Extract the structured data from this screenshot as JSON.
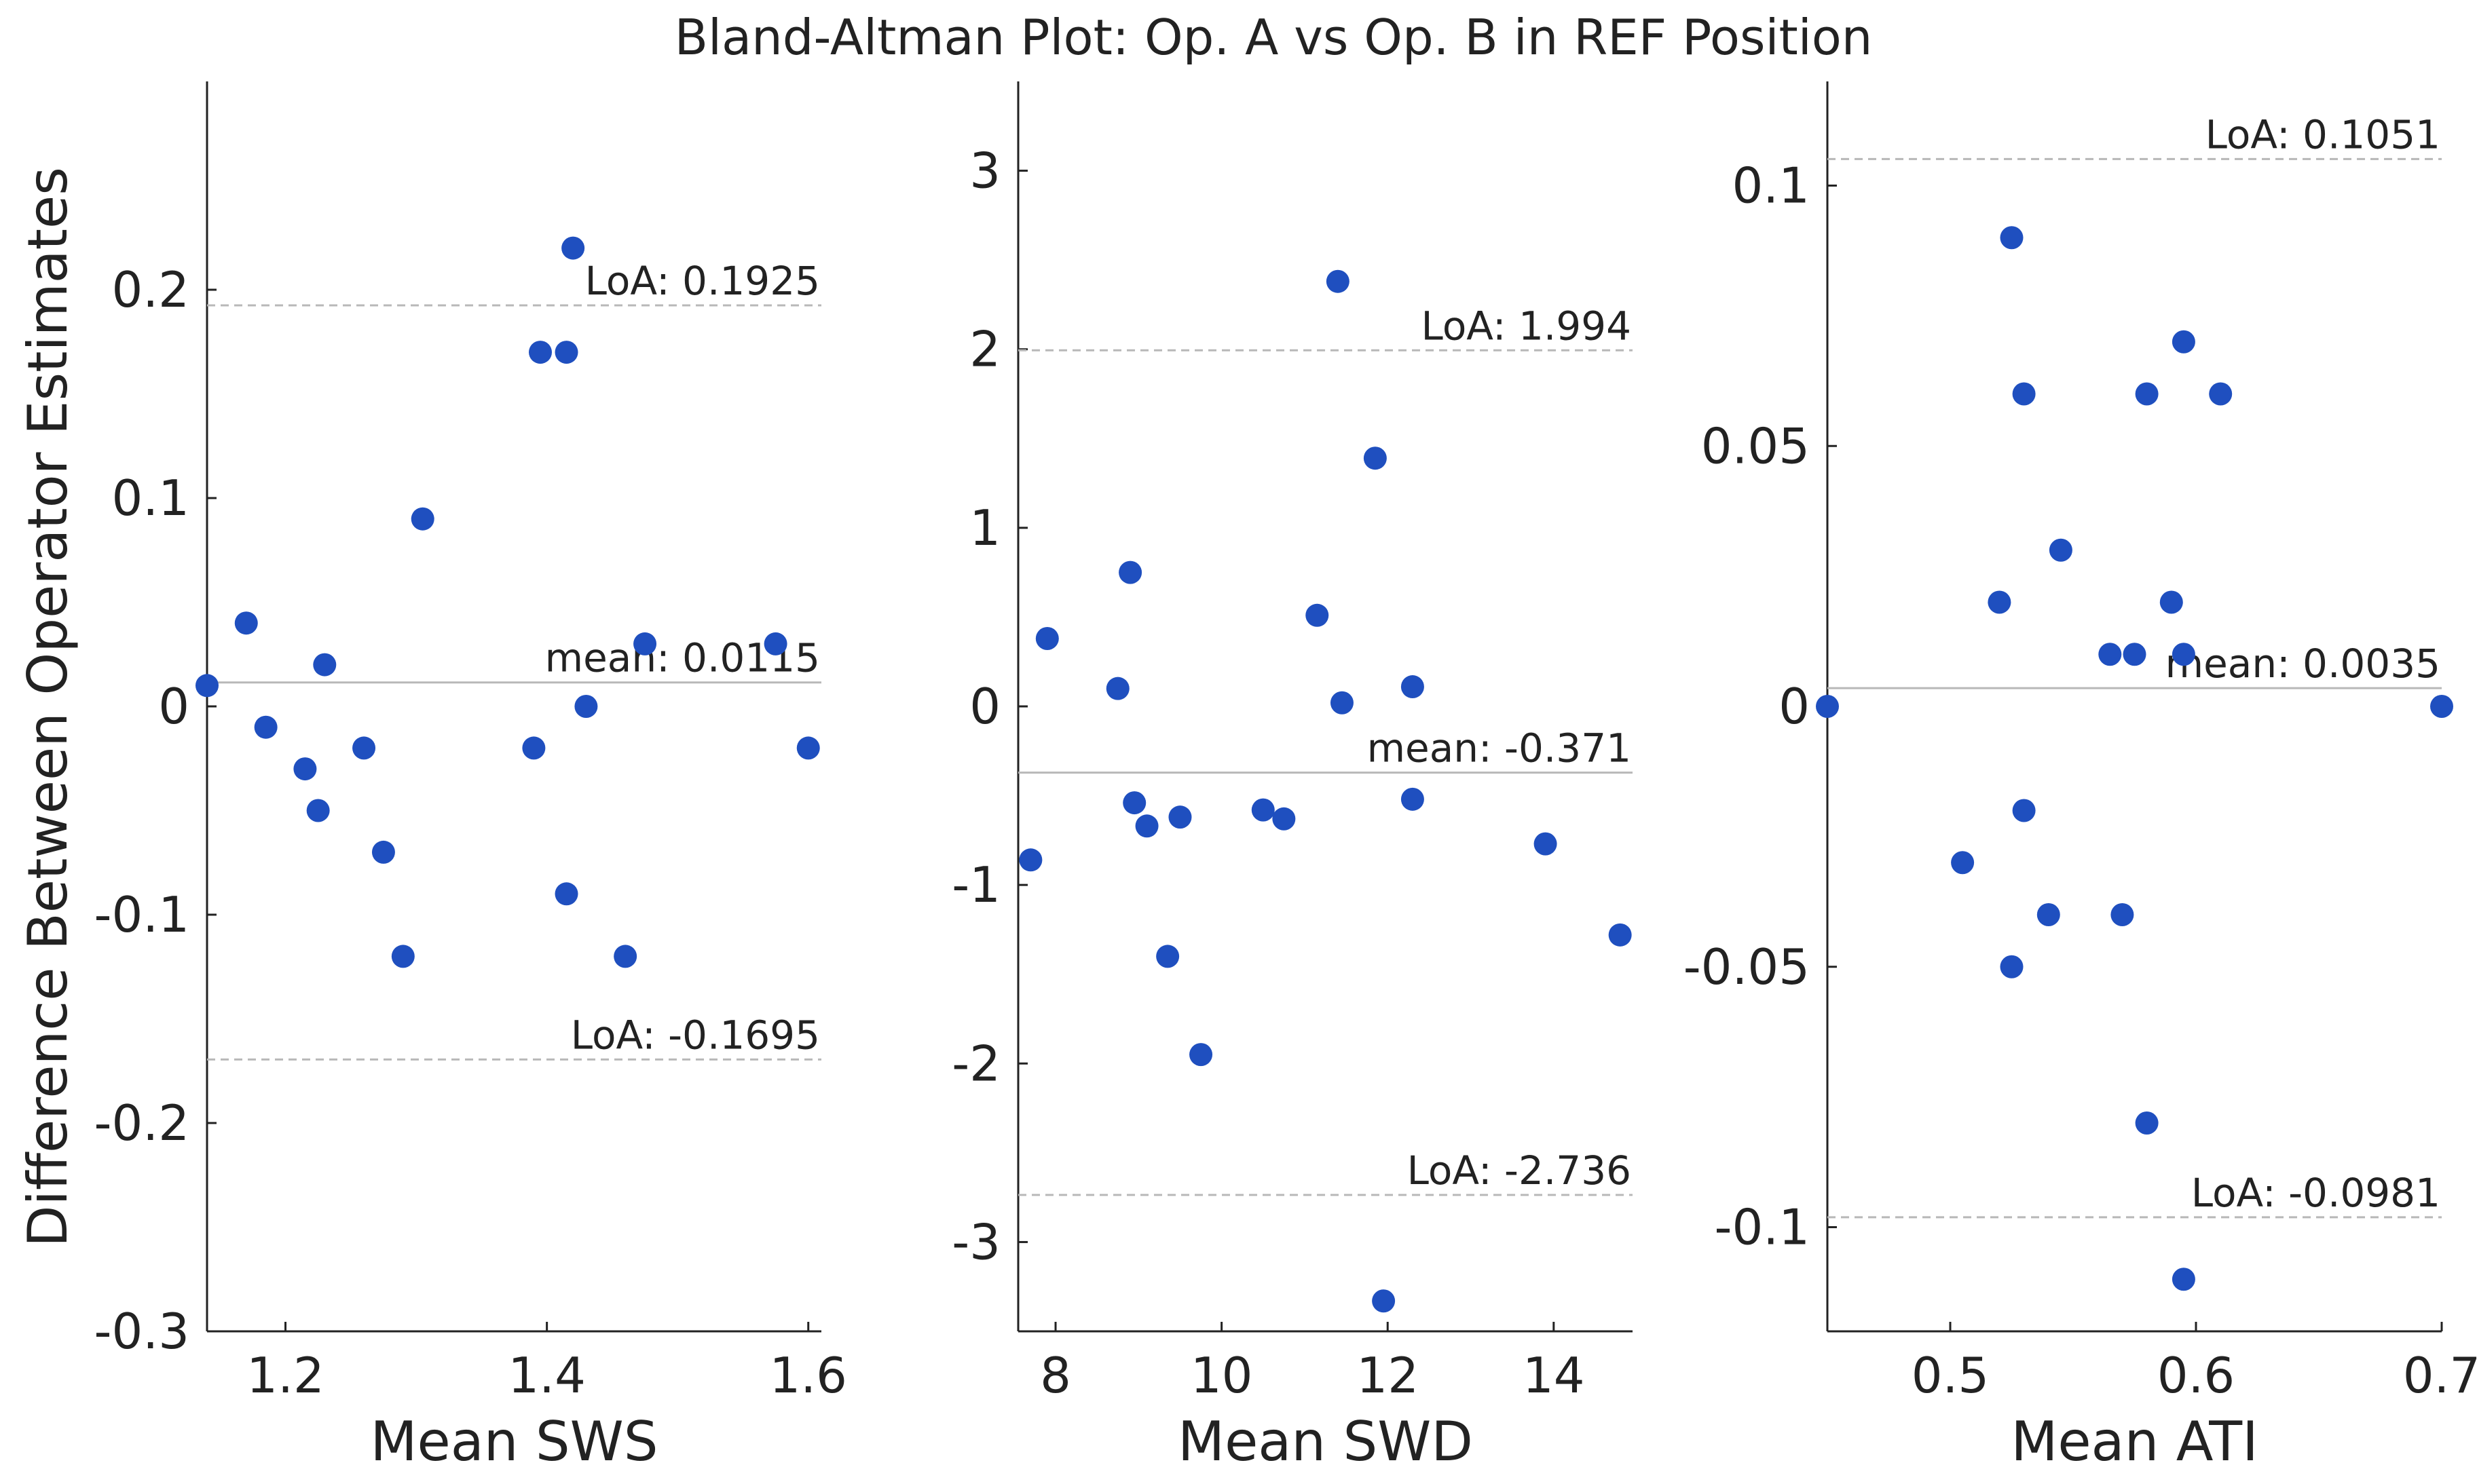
{
  "figure": {
    "title": "Bland-Altman Plot: Op. A vs Op. B in REF Position",
    "ylabel": "Difference Between Operator Estimates"
  },
  "colors": {
    "point": "#1f4fbf",
    "axis": "#222222",
    "text": "#222222",
    "mean_line": "#b8b8b8",
    "loa_line": "#b8b8b8",
    "background": "#ffffff"
  },
  "chart_data": [
    {
      "type": "scatter",
      "name": "sws",
      "xlabel": "Mean SWS",
      "xlim": [
        1.14,
        1.61
      ],
      "ylim": [
        -0.3,
        0.3
      ],
      "xticks": [
        1.2,
        1.4,
        1.6
      ],
      "xtick_labels": [
        "1.2",
        "1.4",
        "1.6"
      ],
      "yticks": [
        -0.3,
        -0.2,
        -0.1,
        0,
        0.1,
        0.2
      ],
      "ytick_labels": [
        "-0.3",
        "-0.2",
        "-0.1",
        "0",
        "0.1",
        "0.2"
      ],
      "mean": 0.0115,
      "mean_label": "mean: 0.0115",
      "loa_upper": 0.1925,
      "loa_upper_label": "LoA: 0.1925",
      "loa_lower": -0.1695,
      "loa_lower_label": "LoA: -0.1695",
      "x": [
        1.14,
        1.17,
        1.185,
        1.215,
        1.225,
        1.23,
        1.26,
        1.275,
        1.29,
        1.305,
        1.39,
        1.395,
        1.415,
        1.415,
        1.42,
        1.43,
        1.46,
        1.475,
        1.575,
        1.6
      ],
      "y": [
        0.01,
        0.04,
        -0.01,
        -0.03,
        -0.05,
        0.02,
        -0.02,
        -0.07,
        -0.12,
        0.09,
        -0.02,
        0.17,
        0.17,
        -0.09,
        0.22,
        0.0,
        -0.12,
        0.03,
        0.03,
        -0.02
      ]
    },
    {
      "type": "scatter",
      "name": "swd",
      "xlabel": "Mean SWD",
      "xlim": [
        7.55,
        14.95
      ],
      "ylim": [
        -3.5,
        3.5
      ],
      "xticks": [
        8,
        10,
        12,
        14
      ],
      "xtick_labels": [
        "8",
        "10",
        "12",
        "14"
      ],
      "yticks": [
        -3,
        -2,
        -1,
        0,
        1,
        2,
        3
      ],
      "ytick_labels": [
        "-3",
        "-2",
        "-1",
        "0",
        "1",
        "2",
        "3"
      ],
      "mean": -0.371,
      "mean_label": "mean: -0.371",
      "loa_upper": 1.994,
      "loa_upper_label": "LoA: 1.994",
      "loa_lower": -2.736,
      "loa_lower_label": "LoA: -2.736",
      "x": [
        7.7,
        7.9,
        8.75,
        8.9,
        8.95,
        9.1,
        9.35,
        9.5,
        9.75,
        10.5,
        10.75,
        11.15,
        11.4,
        11.45,
        11.85,
        11.95,
        12.3,
        12.3,
        13.9,
        14.8
      ],
      "y": [
        -0.86,
        0.38,
        0.1,
        0.75,
        -0.54,
        -0.67,
        -1.4,
        -0.62,
        -1.95,
        -0.58,
        -0.63,
        0.51,
        2.38,
        0.02,
        1.39,
        -3.33,
        0.11,
        -0.52,
        -0.77,
        -1.28
      ]
    },
    {
      "type": "scatter",
      "name": "ati",
      "xlabel": "Mean ATI",
      "xlim": [
        0.45,
        0.7
      ],
      "ylim": [
        -0.12,
        0.12
      ],
      "xticks": [
        0.5,
        0.6,
        0.7
      ],
      "xtick_labels": [
        "0.5",
        "0.6",
        "0.7"
      ],
      "yticks": [
        -0.1,
        -0.05,
        0,
        0.05,
        0.1
      ],
      "ytick_labels": [
        "-0.1",
        "-0.05",
        "0",
        "0.05",
        "0.1"
      ],
      "mean": 0.0035,
      "mean_label": "mean: 0.0035",
      "loa_upper": 0.1051,
      "loa_upper_label": "LoA: 0.1051",
      "loa_lower": -0.0981,
      "loa_lower_label": "LoA: -0.0981",
      "x": [
        0.45,
        0.505,
        0.52,
        0.525,
        0.525,
        0.53,
        0.53,
        0.54,
        0.545,
        0.565,
        0.57,
        0.575,
        0.58,
        0.58,
        0.59,
        0.595,
        0.595,
        0.595,
        0.61,
        0.7
      ],
      "y": [
        0.0,
        -0.03,
        0.02,
        0.09,
        -0.05,
        0.06,
        -0.02,
        -0.04,
        0.03,
        0.01,
        -0.04,
        0.01,
        0.06,
        -0.08,
        0.02,
        0.07,
        0.01,
        -0.11,
        0.06,
        0.0
      ]
    }
  ]
}
